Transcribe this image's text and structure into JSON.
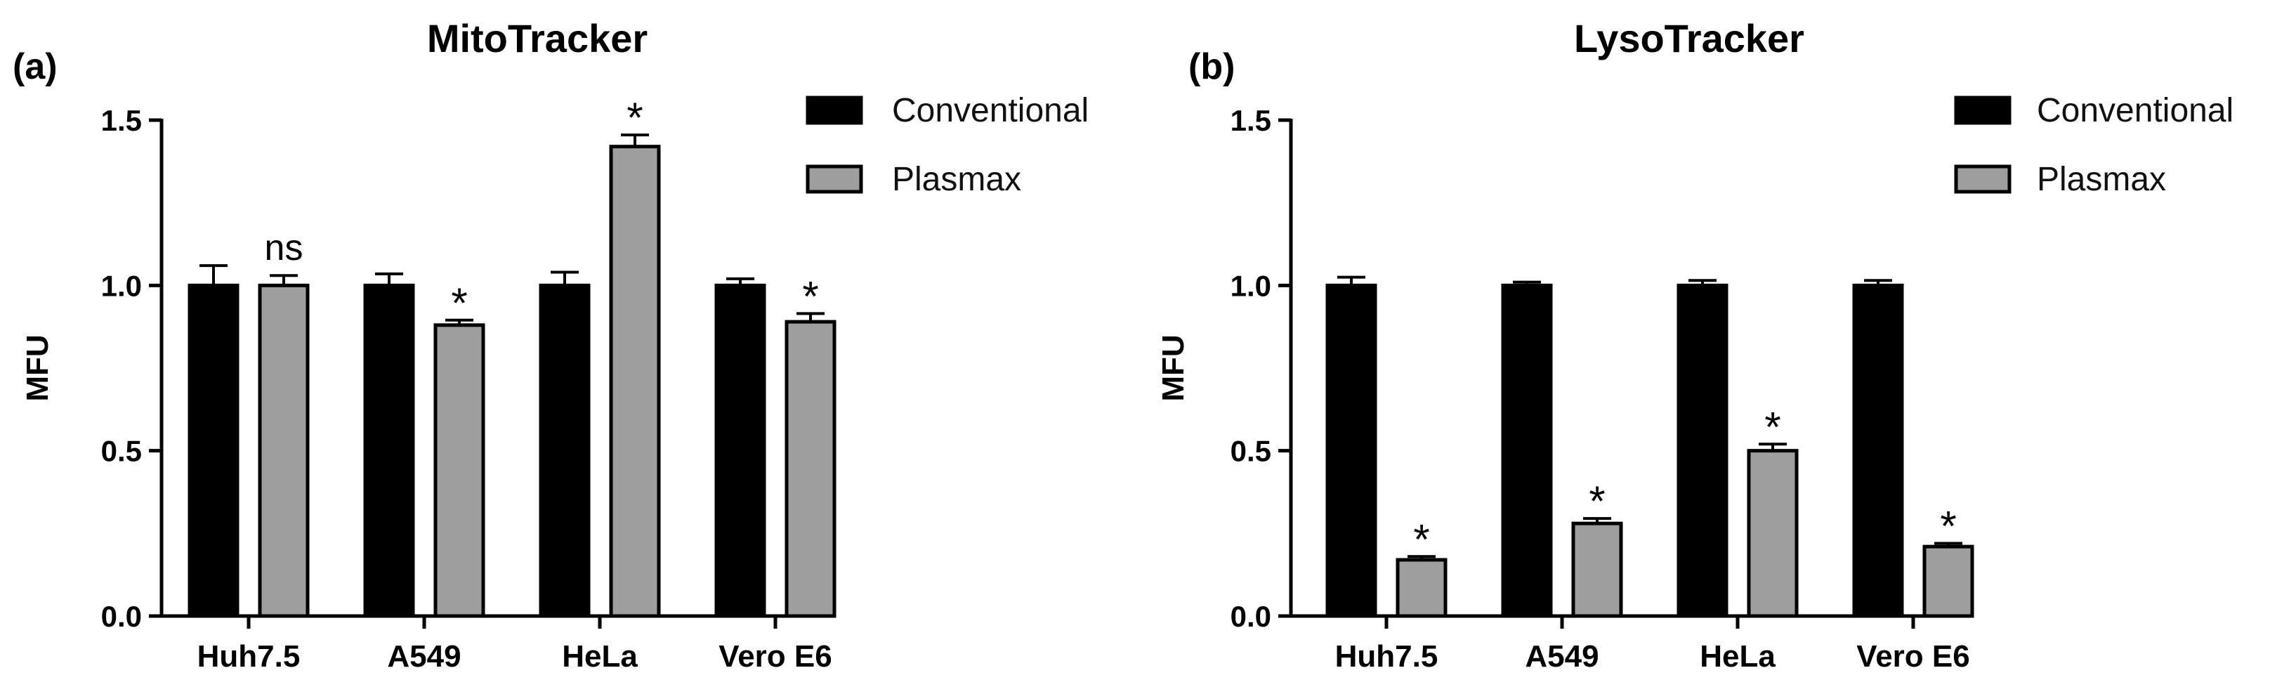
{
  "chart_data": [
    {
      "type": "bar",
      "panel_label": "(a)",
      "title": "MitoTracker",
      "xlabel": "",
      "ylabel": "MFU",
      "ylim": [
        0,
        1.5
      ],
      "yticks": [
        "0.0",
        "0.5",
        "1.0",
        "1.5"
      ],
      "categories": [
        "Huh7.5",
        "A549",
        "HeLa",
        "Vero E6"
      ],
      "series": [
        {
          "name": "Conventional",
          "values": [
            1.0,
            1.0,
            1.0,
            1.0
          ],
          "errors": [
            0.06,
            0.035,
            0.04,
            0.02
          ],
          "color": "#000000"
        },
        {
          "name": "Plasmax",
          "values": [
            1.0,
            0.88,
            1.42,
            0.89
          ],
          "errors": [
            0.03,
            0.015,
            0.035,
            0.025
          ],
          "color": "#9e9e9e"
        }
      ],
      "annotations": [
        "ns",
        "*",
        "*",
        "*"
      ],
      "legend_position": "top-right",
      "grid": false
    },
    {
      "type": "bar",
      "panel_label": "(b)",
      "title": "LysoTracker",
      "xlabel": "",
      "ylabel": "MFU",
      "ylim": [
        0,
        1.5
      ],
      "yticks": [
        "0.0",
        "0.5",
        "1.0",
        "1.5"
      ],
      "categories": [
        "Huh7.5",
        "A549",
        "HeLa",
        "Vero E6"
      ],
      "series": [
        {
          "name": "Conventional",
          "values": [
            1.0,
            1.0,
            1.0,
            1.0
          ],
          "errors": [
            0.025,
            0.01,
            0.015,
            0.015
          ],
          "color": "#000000"
        },
        {
          "name": "Plasmax",
          "values": [
            0.17,
            0.28,
            0.5,
            0.21
          ],
          "errors": [
            0.01,
            0.015,
            0.02,
            0.01
          ],
          "color": "#9e9e9e"
        }
      ],
      "annotations": [
        "*",
        "*",
        "*",
        "*"
      ],
      "legend_position": "top-right",
      "grid": false
    }
  ]
}
